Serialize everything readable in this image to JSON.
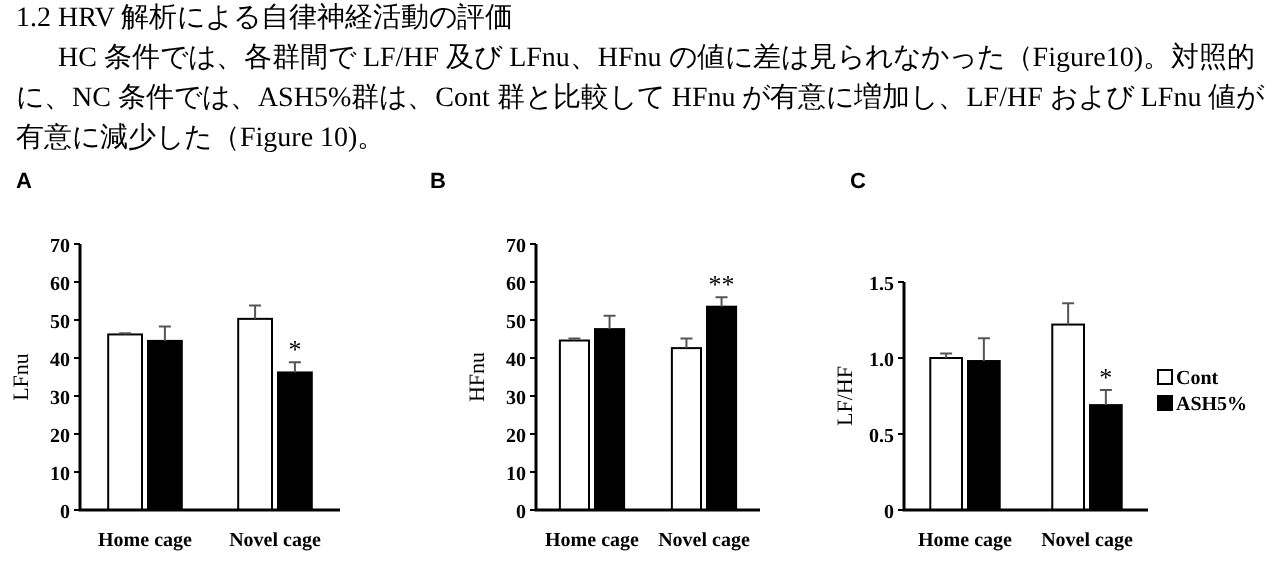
{
  "chart_data": [
    {
      "type": "bar",
      "title": "A",
      "ylabel": "LFnu",
      "categories": [
        "Home cage",
        "Novel cage"
      ],
      "annotations": [
        "1.2 HRV 解析による自律神経活動の評価",
        "HC 条件では、各群間で LF/HF 及び LFnu、HFnu の値に差は見られなかった（Figure10)。対照的に、NC 条件では、ASH5%群は、Cont 群と比較して HFnu が有意に増加し、LF/HF および LFnu 値が有意に減少した（Figure 10)。",
        {
          "text": "*",
          "x": "Novel cage",
          "y": 38.9
        }
      ],
      "series": [
        {
          "color": "#ffffff",
          "values": [
            46.2,
            50.3
          ],
          "errors": [
            0.3,
            3.5
          ]
        },
        {
          "color": "#000000",
          "values": [
            44.5,
            36.2
          ],
          "errors": [
            3.8,
            2.7
          ]
        }
      ],
      "ylim": [
        0,
        70
      ],
      "yticks": [
        0,
        10,
        20,
        30,
        40,
        50,
        60,
        70
      ],
      "grid": false,
      "legend": false
    },
    {
      "type": "bar",
      "title": "B",
      "ylabel": "HFnu",
      "categories": [
        "Home cage",
        "Novel cage"
      ],
      "annotations": [
        {
          "text": "**",
          "x": "Novel cage",
          "y": 56
        }
      ],
      "series": [
        {
          "color": "#ffffff",
          "values": [
            44.6,
            42.6
          ],
          "errors": [
            0.5,
            2.5
          ]
        },
        {
          "color": "#000000",
          "values": [
            47.6,
            53.5
          ],
          "errors": [
            3.5,
            2.5
          ]
        }
      ],
      "ylim": [
        0,
        70
      ],
      "yticks": [
        0,
        10,
        20,
        30,
        40,
        50,
        60,
        70
      ],
      "grid": false,
      "legend": false
    },
    {
      "type": "bar",
      "title": "C",
      "ylabel": "LF/HF",
      "categories": [
        "Home cage",
        "Novel cage"
      ],
      "annotations": [
        {
          "text": "*",
          "x": "Novel cage",
          "y": 0.79
        }
      ],
      "series": [
        {
          "name": "Cont",
          "color": "#ffffff",
          "values": [
            1.0,
            1.22
          ],
          "errors": [
            0.03,
            0.14
          ]
        },
        {
          "name": "ASH5%",
          "color": "#000000",
          "values": [
            0.98,
            0.69
          ],
          "errors": [
            0.15,
            0.1
          ]
        }
      ],
      "ylim": [
        0,
        1.5
      ],
      "yticks": [
        0,
        0.5,
        {
          "value": 1,
          "label": "1.0"
        },
        1.5
      ],
      "grid": false,
      "legend": "right"
    }
  ]
}
